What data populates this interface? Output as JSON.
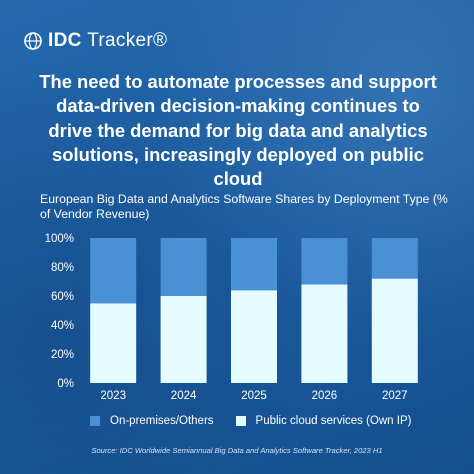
{
  "brand": {
    "name": "IDC",
    "product": "Tracker®"
  },
  "headline": "The need to automate processes and support data-driven decision-making continues to drive the demand for big data and analytics solutions, increasingly deployed on public cloud",
  "source": "Source: IDC Worldwide Semiannual Big Data and Analytics Software Tracker, 2023 H1",
  "colors": {
    "on_premises": "#4a90d4",
    "public_cloud": "#e4fbff",
    "background": "#1c5fa3"
  },
  "chart_data": {
    "type": "bar",
    "stacked": true,
    "title": "European Big Data and Analytics Software Shares by Deployment Type (% of Vendor Revenue)",
    "categories": [
      "2023",
      "2024",
      "2025",
      "2026",
      "2027"
    ],
    "series": [
      {
        "name": "Public cloud services (Own IP)",
        "values": [
          55,
          60,
          64,
          68,
          72
        ]
      },
      {
        "name": "On-premises/Others",
        "values": [
          45,
          40,
          36,
          32,
          28
        ]
      }
    ],
    "ylim": [
      0,
      100
    ],
    "yticks": [
      "0%",
      "20%",
      "40%",
      "60%",
      "80%",
      "100%"
    ],
    "grid": false,
    "legend_position": "bottom"
  }
}
